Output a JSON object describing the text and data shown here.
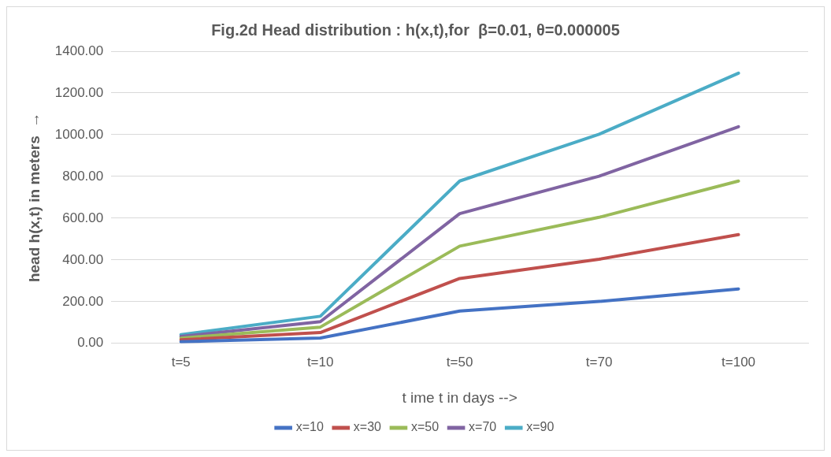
{
  "chart_data": {
    "type": "line",
    "title": "Fig.2d Head distribution : h(x,t),for  β=0.01, θ=0.000005",
    "xlabel": "t ime t in days -->",
    "ylabel": "head h(x,t) in meters  →",
    "categories": [
      "t=5",
      "t=10",
      "t=50",
      "t=70",
      "t=100"
    ],
    "series": [
      {
        "name": "x=10",
        "color": "#4472c4",
        "values": [
          8,
          26,
          155,
          201,
          261
        ]
      },
      {
        "name": "x=30",
        "color": "#c0504d",
        "values": [
          17,
          52,
          311,
          403,
          521
        ]
      },
      {
        "name": "x=50",
        "color": "#9bbb59",
        "values": [
          25,
          78,
          466,
          604,
          778
        ]
      },
      {
        "name": "x=70",
        "color": "#8064a2",
        "values": [
          33,
          104,
          622,
          801,
          1038
        ]
      },
      {
        "name": "x=90",
        "color": "#4bacc6",
        "values": [
          42,
          130,
          778,
          1002,
          1295
        ]
      }
    ],
    "ylim": [
      0,
      1400
    ],
    "yticks": [
      {
        "value": 0,
        "label": "0.00"
      },
      {
        "value": 200,
        "label": "200.00"
      },
      {
        "value": 400,
        "label": "400.00"
      },
      {
        "value": 600,
        "label": "600.00"
      },
      {
        "value": 800,
        "label": "800.00"
      },
      {
        "value": 1000,
        "label": "1000.00"
      },
      {
        "value": 1200,
        "label": "1200.00"
      },
      {
        "value": 1400,
        "label": "1400.00"
      }
    ],
    "grid": "y",
    "legend": "bottom",
    "marker": "none",
    "line_style": "solid"
  }
}
